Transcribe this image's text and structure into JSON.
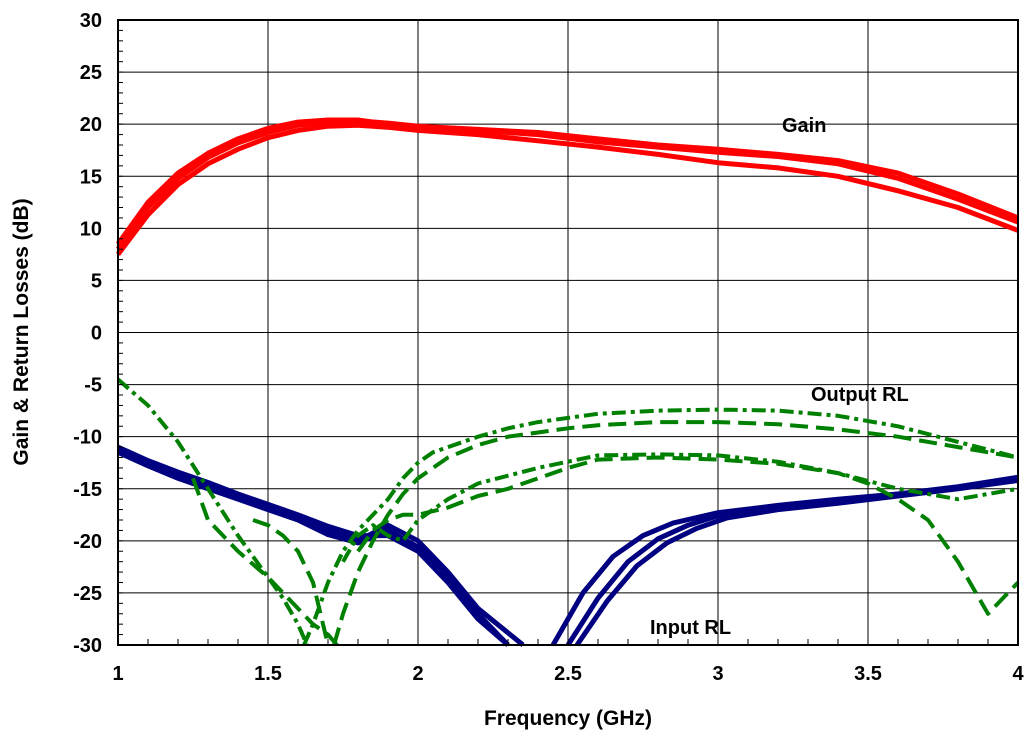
{
  "chart_data": {
    "type": "line",
    "title": "",
    "xlabel": "Frequency (GHz)",
    "ylabel": "Gain & Return Losses (dB)",
    "xlim": [
      1,
      4
    ],
    "ylim": [
      -30,
      30
    ],
    "x_ticks": [
      "1",
      "1.5",
      "2",
      "2.5",
      "3",
      "3.5",
      "4"
    ],
    "y_ticks": [
      "30",
      "25",
      "20",
      "15",
      "10",
      "5",
      "0",
      "-5",
      "-10",
      "-15",
      "-20",
      "-25",
      "-30"
    ],
    "grid": true,
    "legend": "none",
    "annotations": [
      {
        "text": "Gain",
        "series": "gain"
      },
      {
        "text": "Output RL",
        "series": "output_rl"
      },
      {
        "text": "Input RL",
        "series": "input_rl"
      }
    ],
    "colors": {
      "gain": "#ff0000",
      "input_rl": "#000080",
      "output_rl": "#008000"
    },
    "series": [
      {
        "group": "gain",
        "style": "solid",
        "x": [
          1,
          1.1,
          1.2,
          1.3,
          1.4,
          1.5,
          1.6,
          1.7,
          1.8,
          1.9,
          2,
          2.2,
          2.4,
          2.6,
          2.8,
          3,
          3.2,
          3.4,
          3.6,
          3.8,
          4
        ],
        "values": [
          8.5,
          12.5,
          15.3,
          17.2,
          18.6,
          19.6,
          20.2,
          20.4,
          20.4,
          20,
          19.8,
          19.5,
          19.2,
          18.6,
          18,
          17.6,
          17.1,
          16.5,
          15.3,
          13.3,
          11
        ]
      },
      {
        "group": "gain",
        "style": "solid",
        "x": [
          1,
          1.1,
          1.2,
          1.3,
          1.4,
          1.5,
          1.6,
          1.7,
          1.8,
          1.9,
          2,
          2.2,
          2.4,
          2.6,
          2.8,
          3,
          3.2,
          3.4,
          3.6,
          3.8,
          4
        ],
        "values": [
          8,
          12,
          14.8,
          16.8,
          18.2,
          19.2,
          19.9,
          20.2,
          20.3,
          20.1,
          19.8,
          19.4,
          19,
          18.3,
          17.8,
          17.3,
          16.9,
          16.2,
          14.8,
          12.8,
          10.6
        ]
      },
      {
        "group": "gain",
        "style": "solid",
        "x": [
          1,
          1.1,
          1.2,
          1.3,
          1.4,
          1.5,
          1.6,
          1.7,
          1.8,
          1.9,
          2,
          2.2,
          2.4,
          2.6,
          2.8,
          3,
          3.2,
          3.4,
          3.6,
          3.8,
          4
        ],
        "values": [
          7.5,
          11.3,
          14.2,
          16.2,
          17.6,
          18.7,
          19.4,
          19.8,
          19.9,
          19.7,
          19.4,
          19,
          18.4,
          17.8,
          17.1,
          16.3,
          15.8,
          15,
          13.6,
          12,
          9.8
        ]
      },
      {
        "group": "input_rl",
        "style": "solid",
        "x": [
          1,
          1.1,
          1.2,
          1.3,
          1.4,
          1.5,
          1.6,
          1.7,
          1.8,
          1.9,
          2,
          2.1,
          2.2,
          2.3
        ],
        "values": [
          -11,
          -12.3,
          -13.4,
          -14.4,
          -15.5,
          -16.5,
          -17.5,
          -18.6,
          -19.5,
          -19.5,
          -21,
          -24,
          -27.5,
          -30
        ]
      },
      {
        "group": "input_rl",
        "style": "solid",
        "x": [
          1,
          1.1,
          1.2,
          1.3,
          1.4,
          1.5,
          1.6,
          1.7,
          1.8,
          1.9,
          2,
          2.1,
          2.2,
          2.3
        ],
        "values": [
          -11.5,
          -12.8,
          -14,
          -15,
          -16,
          -17,
          -18,
          -19.4,
          -20.2,
          -19,
          -20.6,
          -23.5,
          -27,
          -30
        ]
      },
      {
        "group": "input_rl",
        "style": "solid",
        "x": [
          1,
          1.1,
          1.2,
          1.3,
          1.4,
          1.5,
          1.6,
          1.7,
          1.8,
          1.9,
          2,
          2.1,
          2.2,
          2.35
        ],
        "values": [
          -11.2,
          -12.5,
          -13.7,
          -14.7,
          -15.8,
          -16.8,
          -17.8,
          -19,
          -20,
          -18.5,
          -20,
          -23,
          -26.5,
          -30
        ]
      },
      {
        "group": "input_rl",
        "style": "solid",
        "x": [
          2.45,
          2.55,
          2.65,
          2.75,
          2.85,
          3,
          3.2,
          3.4,
          3.6,
          3.8,
          4
        ],
        "values": [
          -30,
          -25,
          -21.5,
          -19.5,
          -18.3,
          -17.3,
          -16.6,
          -16,
          -15.5,
          -14.9,
          -14
        ]
      },
      {
        "group": "input_rl",
        "style": "solid",
        "x": [
          2.5,
          2.6,
          2.7,
          2.8,
          2.9,
          3,
          3.2,
          3.4,
          3.6,
          3.8,
          4
        ],
        "values": [
          -30,
          -25.5,
          -22,
          -19.8,
          -18.5,
          -17.6,
          -16.8,
          -16.2,
          -15.5,
          -14.8,
          -13.9
        ]
      },
      {
        "group": "input_rl",
        "style": "solid",
        "x": [
          2.53,
          2.63,
          2.73,
          2.83,
          2.93,
          3.03,
          3.2,
          3.4,
          3.6,
          3.8,
          4
        ],
        "values": [
          -30,
          -25.8,
          -22.4,
          -20.2,
          -18.8,
          -17.8,
          -17,
          -16.4,
          -15.7,
          -15,
          -14.2
        ]
      },
      {
        "group": "output_rl",
        "style": "dash-dot",
        "x": [
          1,
          1.1,
          1.2,
          1.3,
          1.4,
          1.5,
          1.55,
          1.6,
          1.63
        ],
        "values": [
          -4.5,
          -7,
          -10.5,
          -15,
          -19.5,
          -23.5,
          -25.5,
          -28,
          -30
        ]
      },
      {
        "group": "output_rl",
        "style": "dash",
        "x": [
          1.25,
          1.3,
          1.4,
          1.5,
          1.55,
          1.6,
          1.65,
          1.7,
          1.73
        ],
        "values": [
          -14,
          -18,
          -21,
          -23.5,
          -25,
          -26.5,
          -28,
          -29,
          -30
        ]
      },
      {
        "group": "output_rl",
        "style": "dash",
        "x": [
          1.45,
          1.5,
          1.55,
          1.6,
          1.65,
          1.7
        ],
        "values": [
          -18,
          -18.5,
          -19.5,
          -21,
          -24,
          -30
        ]
      },
      {
        "group": "output_rl",
        "style": "dash-dot",
        "x": [
          1.62,
          1.65,
          1.7,
          1.75,
          1.8,
          1.85,
          1.9,
          1.95,
          2,
          2.05,
          2.1,
          2.2,
          2.3,
          2.4,
          2.5,
          2.6,
          2.8,
          3,
          3.2,
          3.4,
          3.6,
          3.8,
          4
        ],
        "values": [
          -30,
          -28,
          -24,
          -21,
          -19,
          -17.5,
          -16,
          -14,
          -12.5,
          -11.5,
          -11,
          -10,
          -9.2,
          -8.6,
          -8.2,
          -7.8,
          -7.5,
          -7.4,
          -7.5,
          -8,
          -9,
          -10.5,
          -12
        ]
      },
      {
        "group": "output_rl",
        "style": "dash",
        "x": [
          1.72,
          1.75,
          1.8,
          1.85,
          1.9,
          1.95,
          2,
          2.1,
          2.2,
          2.3,
          2.4,
          2.5,
          2.6,
          2.8,
          3,
          3.2,
          3.4,
          3.6,
          3.8,
          4
        ],
        "values": [
          -30,
          -27,
          -23,
          -20,
          -17.5,
          -15.5,
          -14,
          -12,
          -10.8,
          -10,
          -9.6,
          -9.2,
          -8.9,
          -8.6,
          -8.6,
          -8.8,
          -9.3,
          -10,
          -11,
          -12
        ]
      },
      {
        "group": "output_rl",
        "style": "dash",
        "x": [
          1.8,
          1.85,
          1.9,
          1.95,
          2,
          2.1,
          2.2,
          2.3,
          2.4,
          2.5,
          2.6,
          2.8,
          3,
          3.2,
          3.4,
          3.5,
          3.6,
          3.7,
          3.8,
          3.9,
          4
        ],
        "values": [
          -21,
          -19,
          -18,
          -17.5,
          -17.5,
          -16.8,
          -15.7,
          -15,
          -14,
          -13,
          -12.2,
          -12,
          -12.2,
          -12.6,
          -13.5,
          -14.5,
          -16,
          -18,
          -22,
          -27,
          -24
        ]
      },
      {
        "group": "output_rl",
        "style": "dash-dot",
        "x": [
          1.75,
          1.8,
          1.85,
          1.9,
          1.95,
          2,
          2.1,
          2.2,
          2.4,
          2.6,
          2.8,
          3,
          3.2,
          3.4,
          3.6,
          3.8,
          4
        ],
        "values": [
          -22,
          -19.5,
          -18.5,
          -19.5,
          -20,
          -18,
          -16,
          -14.5,
          -13,
          -11.8,
          -11.7,
          -11.8,
          -12.4,
          -13.5,
          -15,
          -16,
          -15
        ]
      }
    ]
  }
}
